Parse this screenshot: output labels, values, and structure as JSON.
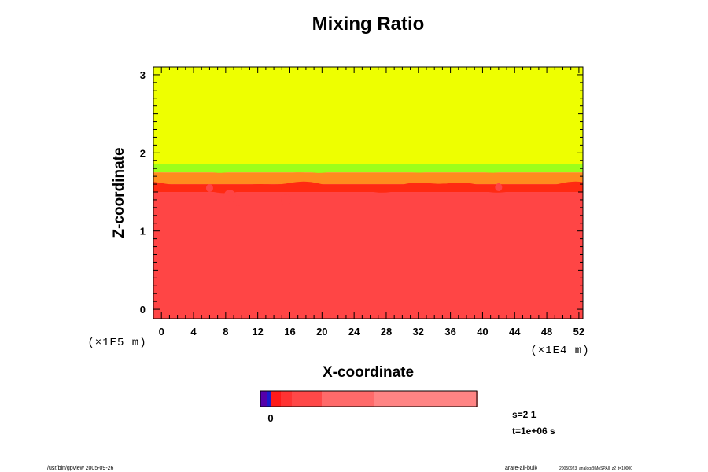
{
  "chart_data": {
    "type": "heatmap",
    "title": "Mixing Ratio",
    "xlabel": "X-coordinate",
    "ylabel": "Z-coordinate",
    "x_scale_label": "(×1E4 m)",
    "y_scale_label": "(×1E5 m)",
    "xlim": [
      -1,
      52.5
    ],
    "ylim": [
      -0.12,
      3.1
    ],
    "x_ticks": [
      0,
      4,
      8,
      12,
      16,
      20,
      24,
      28,
      32,
      36,
      40,
      44,
      48,
      52
    ],
    "y_ticks": [
      0,
      1,
      2,
      3
    ],
    "colors": {
      "upper_layer": "#eeff00",
      "lower_layer": "#ff4545",
      "transition_green": "#9cff1a",
      "transition_orange": "#ff8c1e",
      "transition_red": "#ff2a12"
    },
    "regions": [
      {
        "name": "upper-layer",
        "z_range": [
          1.82,
          3.1
        ],
        "color": "#eeff00"
      },
      {
        "name": "green-band",
        "z_range": [
          1.75,
          1.86
        ],
        "color": "#9cff1a"
      },
      {
        "name": "orange-band",
        "z_range": [
          1.6,
          1.75
        ],
        "color": "#ff8c1e"
      },
      {
        "name": "red-interface",
        "z_range": [
          1.5,
          1.6
        ],
        "color": "#ff2a12"
      },
      {
        "name": "lower-layer",
        "z_range": [
          -0.12,
          1.5
        ],
        "color": "#ff4545"
      }
    ],
    "colorbar": {
      "label": "0",
      "segments": [
        "#5500aa",
        "#1a1acc",
        "#ff1a1a",
        "#ff3333",
        "#ff4848",
        "#ff6a6a",
        "#ff8484",
        "#ff9c9c"
      ]
    }
  },
  "info": {
    "s_label": "s=2 1",
    "t_label": "t=1e+06 s"
  },
  "footer": {
    "left": "/usr/bin/gpview 2005-09-26",
    "right_main": "arare-all-bulk",
    "right_small": "20050923_analog@MoSPAll_z2_t=10000"
  }
}
